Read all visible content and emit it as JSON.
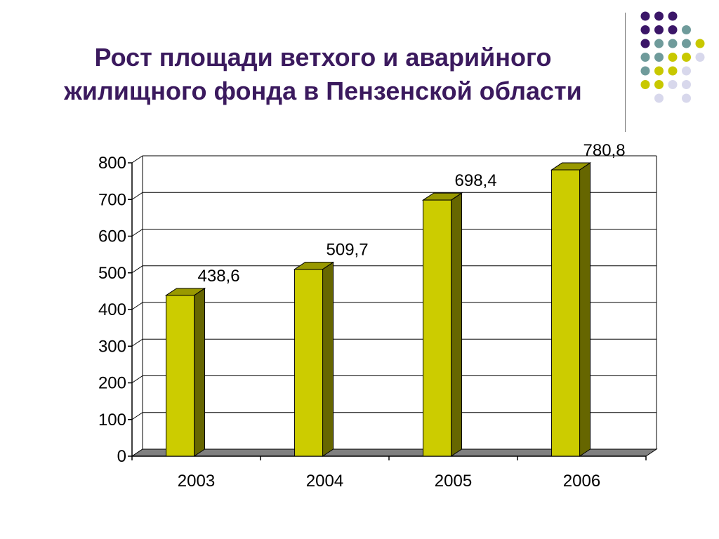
{
  "slide": {
    "title_line1": "Рост площади ветхого и аварийного",
    "title_line2": "жилищного фонда в Пензенской области"
  },
  "decor": {
    "dot_colors": {
      "purple": "#3b1668",
      "teal": "#6f9b9b",
      "yellow": "#c8c800",
      "lavender": "#d8d8ec"
    },
    "dot_rows": [
      [
        "purple",
        "purple",
        "purple",
        null,
        null
      ],
      [
        "purple",
        "purple",
        "purple",
        "teal",
        null
      ],
      [
        "purple",
        "teal",
        "teal",
        "teal",
        "yellow"
      ],
      [
        "teal",
        "teal",
        "yellow",
        "yellow",
        "lavender"
      ],
      [
        "teal",
        "yellow",
        "yellow",
        "lavender",
        null
      ],
      [
        "yellow",
        "yellow",
        "lavender",
        "lavender",
        null
      ],
      [
        null,
        "lavender",
        null,
        "lavender",
        null
      ]
    ]
  },
  "chart_data": {
    "type": "bar",
    "title": "",
    "xlabel": "",
    "ylabel": "",
    "categories": [
      "2003",
      "2004",
      "2005",
      "2006"
    ],
    "series": [
      {
        "values": [
          438.6,
          509.7,
          698.4,
          780.8
        ]
      }
    ],
    "data_labels": [
      "438,6",
      "509,7",
      "698,4",
      "780,8"
    ],
    "y_ticks": [
      0,
      100,
      200,
      300,
      400,
      500,
      600,
      700,
      800
    ],
    "ylim": [
      0,
      800
    ],
    "grid": true,
    "legend": "none",
    "style": "3d-column",
    "colors": {
      "bar_front": "#cccc00",
      "bar_side": "#666600",
      "bar_top": "#999900",
      "floor": "#808080",
      "grid": "#000000"
    }
  }
}
